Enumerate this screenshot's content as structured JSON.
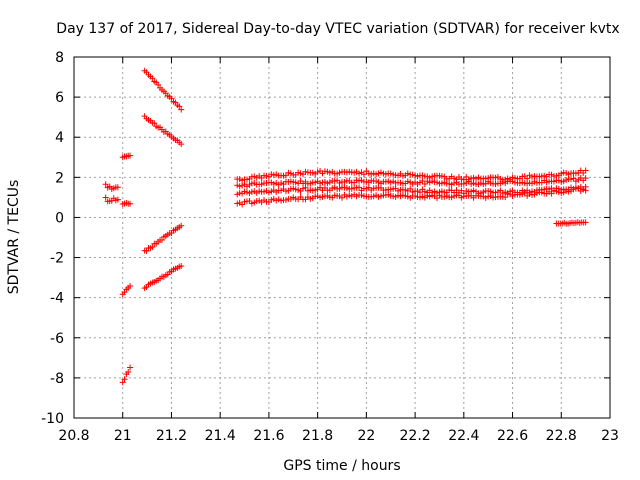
{
  "chart_data": {
    "type": "scatter",
    "title": "Day 137 of 2017, Sidereal Day-to-day VTEC variation (SDTVAR) for receiver kvtx",
    "xlabel": "GPS time / hours",
    "ylabel": "SDTVAR / TECUs",
    "xlim": [
      20.8,
      23
    ],
    "ylim": [
      -10,
      8
    ],
    "grid": true,
    "marker": "plus",
    "marker_color": "#ff0000",
    "x_ticks": [
      20.8,
      21,
      21.2,
      21.4,
      21.6,
      21.8,
      22,
      22.2,
      22.4,
      22.6,
      22.8,
      23
    ],
    "x_tick_labels": [
      "20.8",
      "21",
      "21.2",
      "21.4",
      "21.6",
      "21.8",
      "22",
      "22.2",
      "22.4",
      "22.6",
      "22.8",
      "23"
    ],
    "y_ticks": [
      -10,
      -8,
      -6,
      -4,
      -2,
      0,
      2,
      4,
      6,
      8
    ],
    "y_tick_labels": [
      "-10",
      "-8",
      "-6",
      "-4",
      "-2",
      "0",
      "2",
      "4",
      "6",
      "8"
    ],
    "series": [
      {
        "name": "seg_a1",
        "x_range": [
          20.93,
          20.98
        ],
        "y_start": 1.6,
        "y_end": 1.4,
        "step": 0.008,
        "noise": 0.15
      },
      {
        "name": "seg_a2",
        "x_range": [
          20.93,
          20.98
        ],
        "y_start": 0.9,
        "y_end": 0.9,
        "step": 0.008,
        "noise": 0.1
      },
      {
        "name": "seg_b1",
        "x_range": [
          21.0,
          21.03
        ],
        "y_start": 3.0,
        "y_end": 3.1,
        "step": 0.008,
        "noise": 0.03
      },
      {
        "name": "seg_b2",
        "x_range": [
          21.0,
          21.03
        ],
        "y_start": 0.7,
        "y_end": 0.7,
        "step": 0.008,
        "noise": 0.03
      },
      {
        "name": "seg_b3",
        "x_range": [
          21.0,
          21.03
        ],
        "y_start": -3.8,
        "y_end": -3.4,
        "step": 0.008,
        "noise": 0.03
      },
      {
        "name": "seg_b4",
        "x_range": [
          21.0,
          21.03
        ],
        "y_start": -8.2,
        "y_end": -7.5,
        "step": 0.008,
        "noise": 0.05
      },
      {
        "name": "seg_c1",
        "x_range": [
          21.09,
          21.24
        ],
        "y_start": 7.3,
        "y_end": 5.4,
        "step": 0.008,
        "noise": 0.05
      },
      {
        "name": "seg_c2",
        "x_range": [
          21.09,
          21.24
        ],
        "y_start": 5.0,
        "y_end": 3.7,
        "step": 0.008,
        "noise": 0.05
      },
      {
        "name": "seg_c3",
        "x_range": [
          21.09,
          21.24
        ],
        "y_start": -1.7,
        "y_end": -0.4,
        "step": 0.008,
        "noise": 0.05
      },
      {
        "name": "seg_c4",
        "x_range": [
          21.09,
          21.24
        ],
        "y_start": -3.5,
        "y_end": -2.4,
        "step": 0.008,
        "noise": 0.05
      },
      {
        "name": "seg_d1",
        "x_range": [
          21.47,
          22.9
        ],
        "y_start": 1.9,
        "y_end": 2.3,
        "step": 0.01,
        "noise": 0.08,
        "bump": 0.5
      },
      {
        "name": "seg_d2",
        "x_range": [
          21.47,
          22.9
        ],
        "y_start": 1.6,
        "y_end": 1.9,
        "step": 0.01,
        "noise": 0.08,
        "bump": 0.2
      },
      {
        "name": "seg_d3",
        "x_range": [
          21.47,
          22.9
        ],
        "y_start": 1.2,
        "y_end": 1.5,
        "step": 0.01,
        "noise": 0.08,
        "bump": 0.3
      },
      {
        "name": "seg_d4",
        "x_range": [
          21.47,
          22.9
        ],
        "y_start": 0.7,
        "y_end": 1.4,
        "step": 0.01,
        "noise": 0.08,
        "bump": 0.3
      },
      {
        "name": "seg_e1",
        "x_range": [
          22.78,
          22.9
        ],
        "y_start": -0.3,
        "y_end": -0.25,
        "step": 0.008,
        "noise": 0.04
      }
    ]
  }
}
